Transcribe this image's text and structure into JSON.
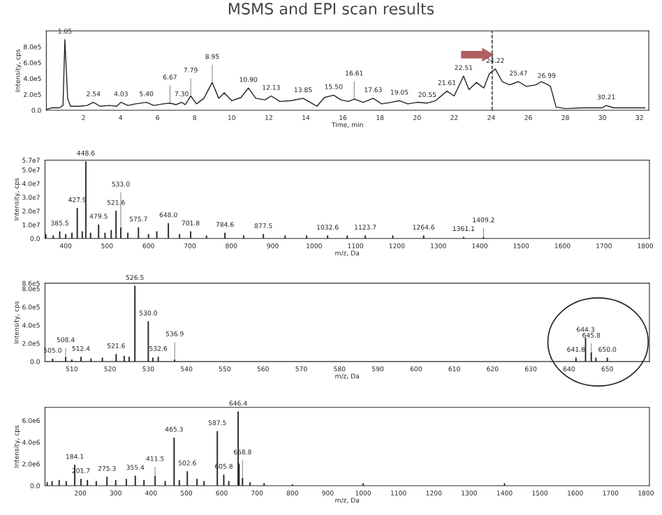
{
  "chart_data": [
    {
      "type": "line",
      "title": "MSMS and EPI scan results",
      "xlabel": "Time, min",
      "ylabel": "Intensity, cps",
      "x": [
        0,
        0.3,
        0.7,
        0.9,
        1.0,
        1.15,
        1.3,
        1.8,
        2.2,
        2.54,
        2.9,
        3.4,
        3.8,
        4.03,
        4.4,
        4.8,
        5.4,
        5.8,
        6.3,
        6.67,
        7.0,
        7.3,
        7.5,
        7.79,
        8.1,
        8.5,
        8.95,
        9.3,
        9.6,
        10.0,
        10.5,
        10.9,
        11.3,
        11.8,
        12.13,
        12.6,
        13.2,
        13.85,
        14.3,
        14.6,
        15.0,
        15.5,
        15.9,
        16.3,
        16.61,
        17.1,
        17.63,
        18.1,
        18.6,
        19.05,
        19.5,
        20.0,
        20.55,
        21.0,
        21.61,
        22.0,
        22.51,
        22.8,
        23.2,
        23.6,
        23.9,
        24.22,
        24.6,
        25.0,
        25.47,
        25.9,
        26.4,
        26.7,
        26.99,
        27.2,
        27.5,
        28.0,
        29.0,
        30.0,
        30.21,
        30.6,
        31.5,
        32.3
      ],
      "series": [
        {
          "color": "#222222",
          "values": [
            10000,
            30000,
            30000,
            60000,
            890000,
            150000,
            50000,
            50000,
            60000,
            100000,
            50000,
            60000,
            50000,
            100000,
            60000,
            80000,
            100000,
            60000,
            80000,
            90000,
            70000,
            100000,
            70000,
            180000,
            80000,
            150000,
            350000,
            150000,
            220000,
            120000,
            160000,
            280000,
            150000,
            130000,
            180000,
            110000,
            120000,
            150000,
            90000,
            50000,
            160000,
            190000,
            130000,
            110000,
            140000,
            100000,
            150000,
            80000,
            100000,
            120000,
            80000,
            100000,
            90000,
            120000,
            240000,
            180000,
            430000,
            260000,
            350000,
            280000,
            460000,
            520000,
            360000,
            320000,
            360000,
            300000,
            320000,
            360000,
            330000,
            300000,
            40000,
            20000,
            30000,
            30000,
            60000,
            30000,
            30000,
            30000
          ]
        }
      ],
      "xlim": [
        0,
        32.5
      ],
      "xticks": [
        2,
        4,
        6,
        8,
        10,
        12,
        14,
        16,
        18,
        20,
        22,
        24,
        26,
        28,
        30,
        32
      ],
      "ylim": [
        0,
        1000000
      ],
      "yticks": [
        {
          "value": 0,
          "label": "0.0"
        },
        {
          "value": 200000,
          "label": "2.0e5"
        },
        {
          "value": 400000,
          "label": "4.0e5"
        },
        {
          "value": 600000,
          "label": "6.0e5"
        },
        {
          "value": 800000,
          "label": "8.0e5"
        }
      ],
      "ref_lines": [
        {
          "axis": "x",
          "value": 24.05,
          "color": "#222222",
          "line_style": "dashed"
        }
      ],
      "annotations": [
        {
          "text": "1.05",
          "x": 1.0,
          "y": 890000
        },
        {
          "text": "2.54",
          "x": 2.54,
          "y": 100000
        },
        {
          "text": "4.03",
          "x": 4.03,
          "y": 100000
        },
        {
          "text": "5.40",
          "x": 5.4,
          "y": 100000
        },
        {
          "text": "6.67",
          "x": 6.67,
          "y": 90000
        },
        {
          "text": "7.30",
          "x": 7.3,
          "y": 100000
        },
        {
          "text": "7.79",
          "x": 7.79,
          "y": 180000
        },
        {
          "text": "8.95",
          "x": 8.95,
          "y": 350000
        },
        {
          "text": "10.90",
          "x": 10.9,
          "y": 280000
        },
        {
          "text": "12.13",
          "x": 12.13,
          "y": 180000
        },
        {
          "text": "13.85",
          "x": 13.85,
          "y": 150000
        },
        {
          "text": "15.50",
          "x": 15.5,
          "y": 190000
        },
        {
          "text": "16.61",
          "x": 16.61,
          "y": 140000
        },
        {
          "text": "17.63",
          "x": 17.63,
          "y": 150000
        },
        {
          "text": "19.05",
          "x": 19.05,
          "y": 120000
        },
        {
          "text": "20.55",
          "x": 20.55,
          "y": 90000
        },
        {
          "text": "21.61",
          "x": 21.61,
          "y": 240000
        },
        {
          "text": "22.51",
          "x": 22.51,
          "y": 430000
        },
        {
          "text": "24.22",
          "x": 24.22,
          "y": 520000
        },
        {
          "text": "25.47",
          "x": 25.47,
          "y": 360000
        },
        {
          "text": "26.99",
          "x": 26.99,
          "y": 330000
        },
        {
          "text": "30.21",
          "x": 30.21,
          "y": 60000
        }
      ]
    },
    {
      "type": "bar",
      "xlabel": "m/z, Da",
      "ylabel": "Intensity, cps",
      "x": [
        352,
        370,
        385.5,
        400,
        415,
        427.9,
        440,
        448.6,
        460,
        479.5,
        495,
        510,
        521.6,
        533.0,
        550,
        575.7,
        600,
        620,
        648.0,
        675,
        701.8,
        740,
        784.6,
        830,
        877.5,
        930,
        982,
        1032.6,
        1080,
        1123.7,
        1190,
        1264.6,
        1361.1,
        1409.2
      ],
      "series": [
        {
          "color": "#222222",
          "values": [
            3000000,
            2000000,
            5000000,
            3000000,
            4000000,
            22000000,
            5000000,
            56000000,
            4000000,
            10000000,
            4000000,
            6000000,
            20000000,
            8000000,
            4000000,
            8000000,
            3000000,
            5000000,
            11000000,
            3000000,
            5000000,
            2000000,
            4000000,
            2000000,
            3000000,
            2000000,
            2000000,
            2000000,
            2000000,
            2000000,
            2000000,
            2000000,
            1000000,
            1000000
          ]
        }
      ],
      "xlim": [
        350,
        1810
      ],
      "xticks": [
        400,
        500,
        600,
        700,
        800,
        900,
        1000,
        1100,
        1200,
        1300,
        1400,
        1500,
        1600,
        1700,
        1800
      ],
      "ylim": [
        0,
        57000000
      ],
      "yticks": [
        {
          "value": 0,
          "label": "0.0"
        },
        {
          "value": 10000000,
          "label": "1.0e7"
        },
        {
          "value": 20000000,
          "label": "2.0e7"
        },
        {
          "value": 30000000,
          "label": "3.0e7"
        },
        {
          "value": 40000000,
          "label": "4.0e7"
        },
        {
          "value": 50000000,
          "label": "5.0e7"
        },
        {
          "value": 57000000,
          "label": "5.7e7"
        }
      ],
      "annotations": [
        {
          "text": "385.5",
          "x": 385.5,
          "y": 5000000
        },
        {
          "text": "427.9",
          "x": 427.9,
          "y": 22000000
        },
        {
          "text": "448.6",
          "x": 448.6,
          "y": 56000000
        },
        {
          "text": "479.5",
          "x": 479.5,
          "y": 10000000
        },
        {
          "text": "521.6",
          "x": 521.6,
          "y": 20000000
        },
        {
          "text": "533.0",
          "x": 533.0,
          "y": 8000000
        },
        {
          "text": "575.7",
          "x": 575.7,
          "y": 8000000
        },
        {
          "text": "648.0",
          "x": 648.0,
          "y": 11000000
        },
        {
          "text": "701.8",
          "x": 701.8,
          "y": 5000000
        },
        {
          "text": "784.6",
          "x": 784.6,
          "y": 4000000
        },
        {
          "text": "877.5",
          "x": 877.5,
          "y": 3000000
        },
        {
          "text": "1032.6",
          "x": 1032.6,
          "y": 2000000
        },
        {
          "text": "1123.7",
          "x": 1123.7,
          "y": 2000000
        },
        {
          "text": "1264.6",
          "x": 1264.6,
          "y": 2000000
        },
        {
          "text": "1361.1",
          "x": 1361.1,
          "y": 1000000
        },
        {
          "text": "1409.2",
          "x": 1409.2,
          "y": 1000000
        }
      ]
    },
    {
      "type": "bar",
      "xlabel": "m/z, Da",
      "ylabel": "Intensity, cps",
      "x": [
        505.0,
        508.4,
        510,
        512.4,
        515,
        518.0,
        521.6,
        523.7,
        525.0,
        526.5,
        530.0,
        531.2,
        532.6,
        536.9,
        641.8,
        644.3,
        645.8,
        647.0,
        650.0
      ],
      "series": [
        {
          "color": "#222222",
          "values": [
            30000,
            50000,
            20000,
            50000,
            30000,
            40000,
            80000,
            60000,
            50000,
            830000,
            440000,
            40000,
            50000,
            20000,
            40000,
            260000,
            100000,
            40000,
            40000
          ]
        }
      ],
      "xlim": [
        503,
        661
      ],
      "xticks": [
        510,
        520,
        530,
        540,
        550,
        560,
        570,
        580,
        590,
        600,
        610,
        620,
        630,
        640,
        650
      ],
      "ylim": [
        0,
        860000
      ],
      "yticks": [
        {
          "value": 0,
          "label": "0.0"
        },
        {
          "value": 200000,
          "label": "2.0e5"
        },
        {
          "value": 400000,
          "label": "4.0e5"
        },
        {
          "value": 600000,
          "label": "6.0e5"
        },
        {
          "value": 800000,
          "label": "8.0e5"
        },
        {
          "value": 860000,
          "label": "8.6e5"
        }
      ],
      "annotations": [
        {
          "text": "505.0",
          "x": 505.0,
          "y": 30000
        },
        {
          "text": "508.4",
          "x": 508.4,
          "y": 50000
        },
        {
          "text": "512.4",
          "x": 512.4,
          "y": 50000
        },
        {
          "text": "521.6",
          "x": 521.6,
          "y": 80000
        },
        {
          "text": "526.5",
          "x": 526.5,
          "y": 830000
        },
        {
          "text": "530.0",
          "x": 530.0,
          "y": 440000
        },
        {
          "text": "532.6",
          "x": 532.6,
          "y": 50000
        },
        {
          "text": "536.9",
          "x": 536.9,
          "y": 20000
        },
        {
          "text": "641.8",
          "x": 641.8,
          "y": 40000
        },
        {
          "text": "644.3",
          "x": 644.3,
          "y": 260000
        },
        {
          "text": "645.8",
          "x": 645.8,
          "y": 100000
        },
        {
          "text": "650.0",
          "x": 650.0,
          "y": 40000
        }
      ]
    },
    {
      "type": "bar",
      "xlabel": "m/z, Da",
      "ylabel": "Intensity, cps",
      "x": [
        106,
        120,
        140,
        160,
        184.1,
        201.7,
        220,
        245,
        275.3,
        300,
        330,
        355.4,
        380,
        411.5,
        440,
        465.3,
        480,
        502.6,
        530,
        550,
        587.5,
        605.8,
        620,
        646.4,
        649,
        658.8,
        680,
        720,
        800,
        1000,
        1400
      ],
      "series": [
        {
          "color": "#222222",
          "values": [
            300000,
            400000,
            500000,
            400000,
            1900000,
            600000,
            500000,
            400000,
            800000,
            500000,
            600000,
            900000,
            500000,
            900000,
            400000,
            4400000,
            500000,
            1300000,
            600000,
            400000,
            5000000,
            1000000,
            400000,
            6800000,
            2000000,
            700000,
            300000,
            200000,
            100000,
            200000,
            200000
          ]
        }
      ],
      "xlim": [
        100,
        1810
      ],
      "xticks": [
        200,
        300,
        400,
        500,
        600,
        700,
        800,
        900,
        1000,
        1100,
        1200,
        1300,
        1400,
        1500,
        1600,
        1700,
        1800
      ],
      "ylim": [
        0,
        7200000
      ],
      "yticks": [
        {
          "value": 0,
          "label": "0.0"
        },
        {
          "value": 2000000,
          "label": "2.0e6"
        },
        {
          "value": 4000000,
          "label": "4.0e6"
        },
        {
          "value": 6000000,
          "label": "6.0e6"
        }
      ],
      "annotations": [
        {
          "text": "184.1",
          "x": 184.1,
          "y": 1900000
        },
        {
          "text": "201.7",
          "x": 201.7,
          "y": 600000
        },
        {
          "text": "275.3",
          "x": 275.3,
          "y": 800000
        },
        {
          "text": "355.4",
          "x": 355.4,
          "y": 900000
        },
        {
          "text": "411.5",
          "x": 411.5,
          "y": 900000
        },
        {
          "text": "465.3",
          "x": 465.3,
          "y": 4400000
        },
        {
          "text": "502.6",
          "x": 502.6,
          "y": 1300000
        },
        {
          "text": "587.5",
          "x": 587.5,
          "y": 5000000
        },
        {
          "text": "605.8",
          "x": 605.8,
          "y": 1000000
        },
        {
          "text": "646.4",
          "x": 646.4,
          "y": 6800000
        },
        {
          "text": "658.8",
          "x": 658.8,
          "y": 700000
        }
      ]
    }
  ]
}
